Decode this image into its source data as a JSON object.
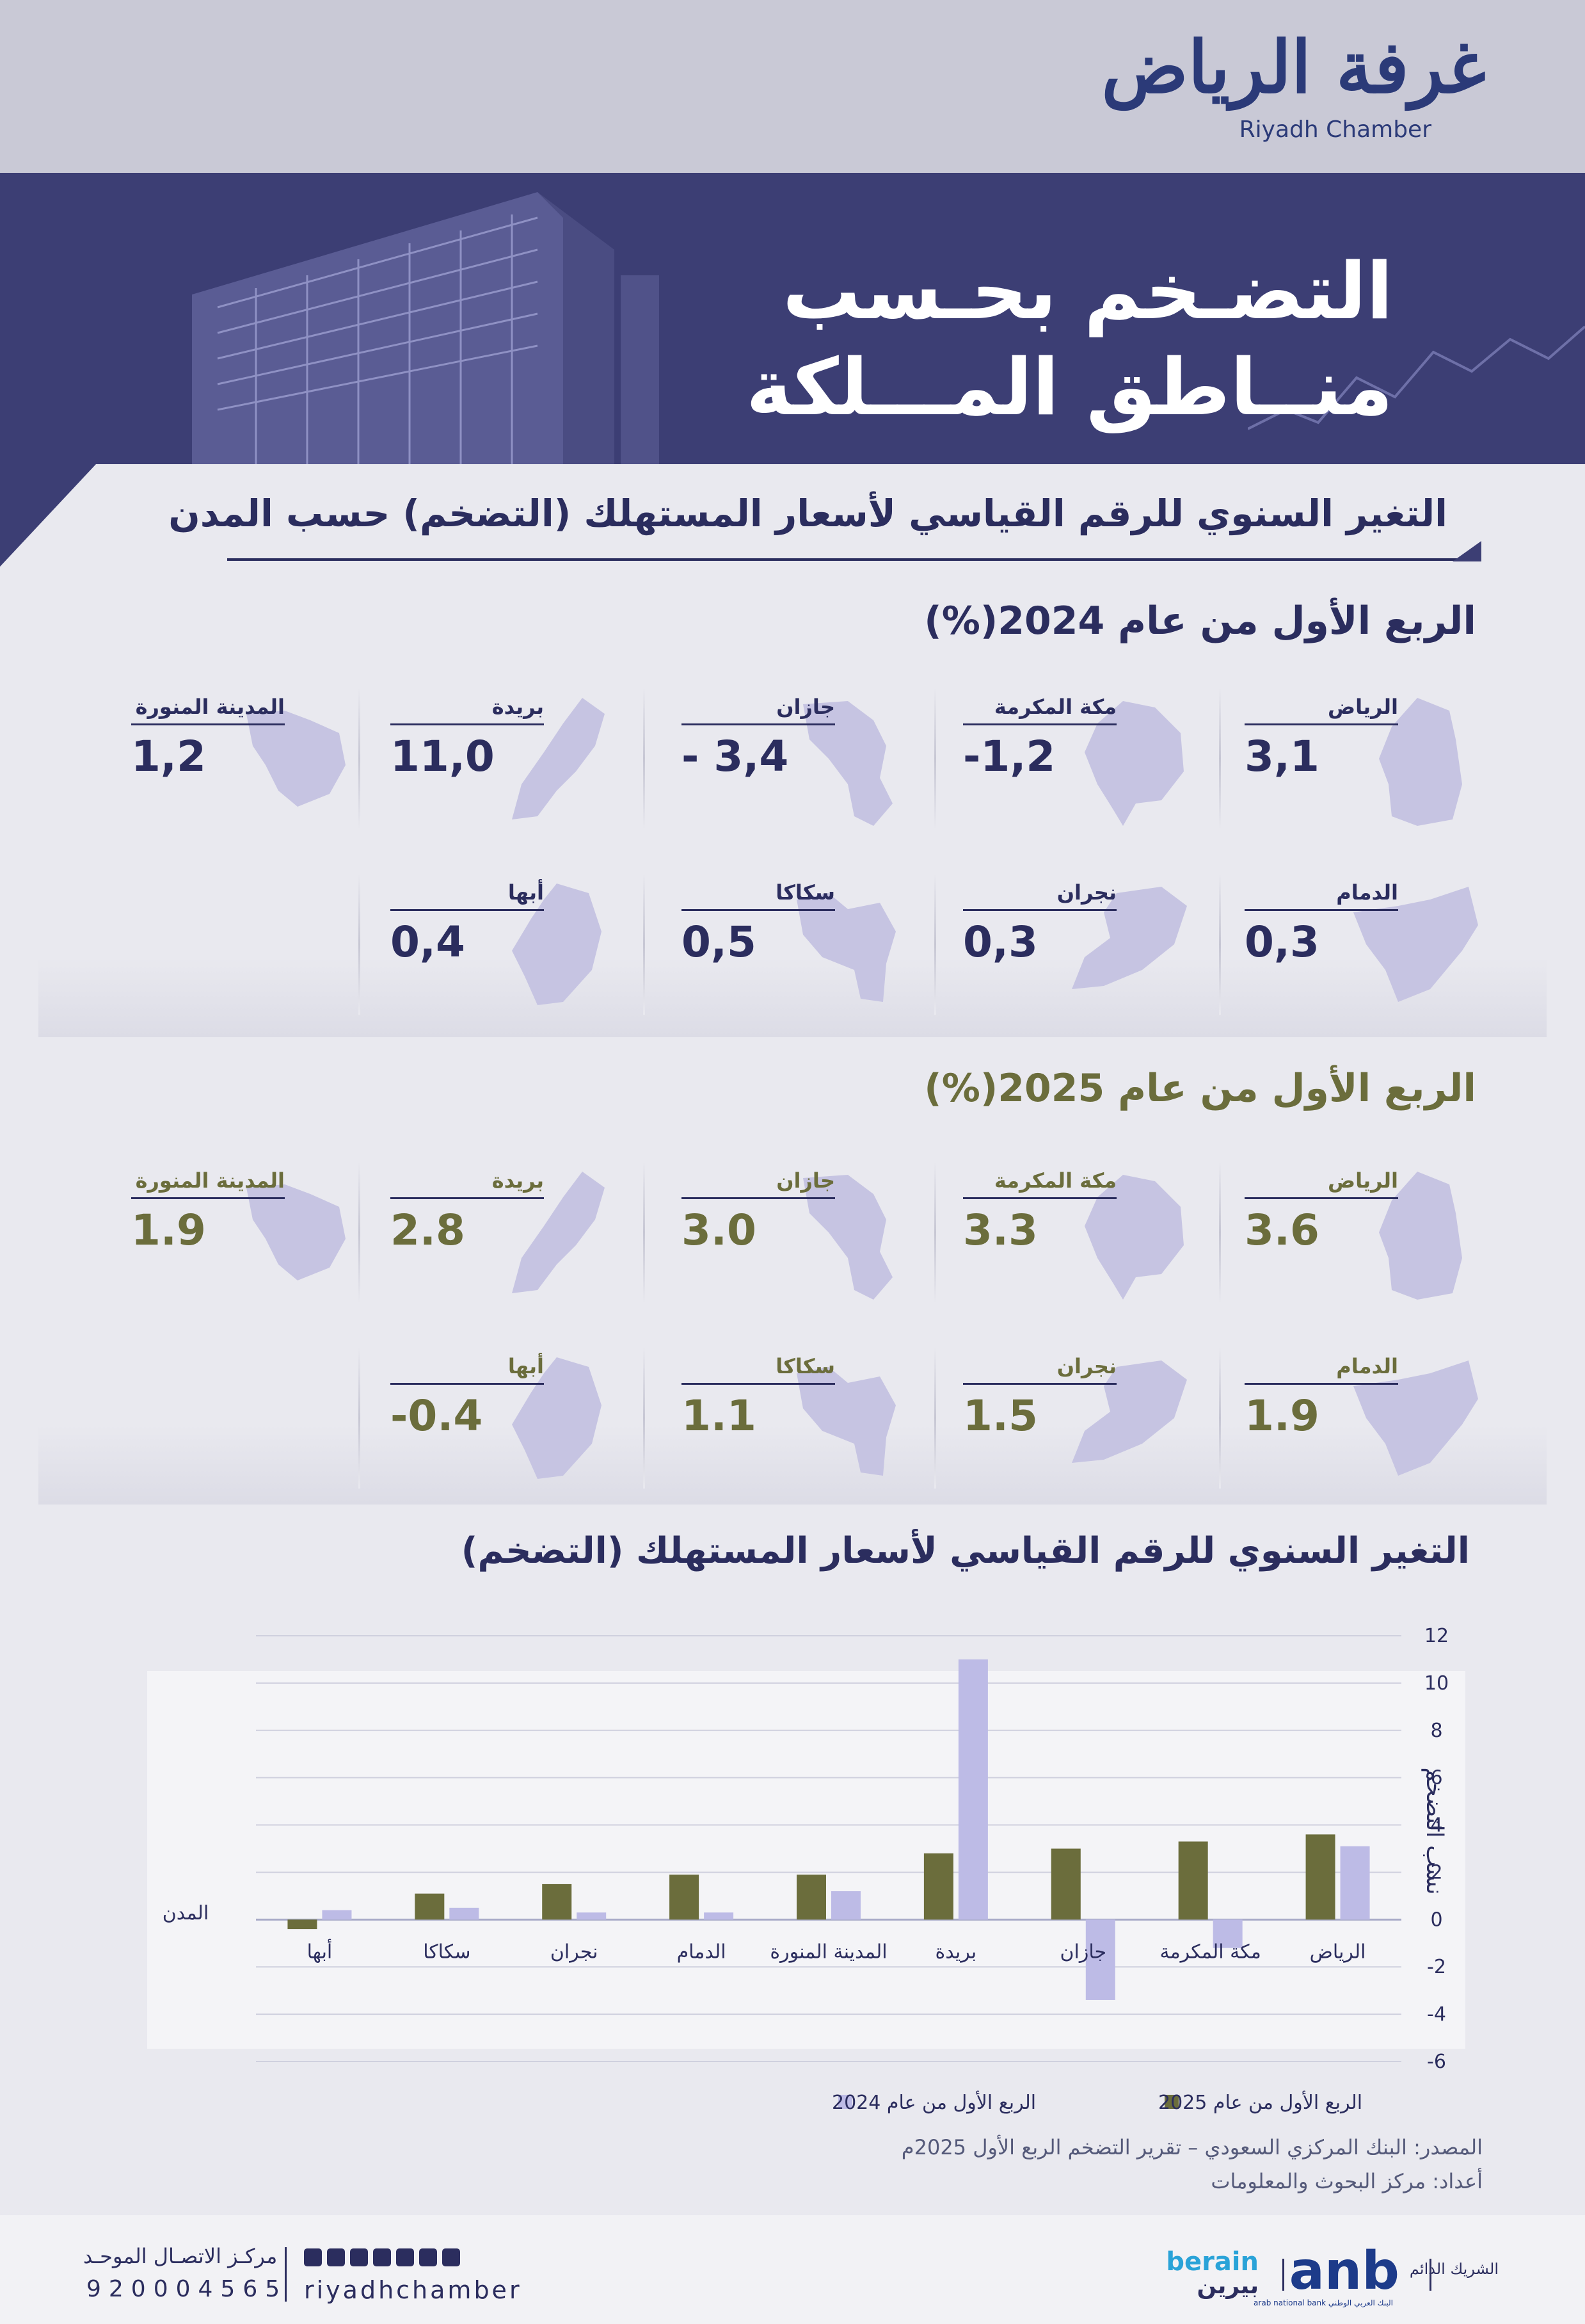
{
  "header": {
    "logo_ar": "غرفة الرياض",
    "logo_en": "Riyadh Chamber",
    "hero_title_line1": "التضـخم بحـسب",
    "hero_title_line2": "منــاطق المـــلكة"
  },
  "section": {
    "title": "التغير السنوي للرقم القياسي لأسعار المستهلك (التضخم) حسب المدن"
  },
  "q1_2024": {
    "heading": "الربع الأول من عام 2024(%)",
    "cities": [
      {
        "name": "الرياض",
        "value": "3,1",
        "map": "riyadh-map-icon"
      },
      {
        "name": "مكة المكرمة",
        "value": "-1,2",
        "map": "makkah-map-icon"
      },
      {
        "name": "جازان",
        "value": "- 3,4",
        "map": "jazan-map-icon"
      },
      {
        "name": "بريدة",
        "value": "11,0",
        "map": "buraidah-map-icon"
      },
      {
        "name": "المدينة المنورة",
        "value": "1,2",
        "map": "madinah-map-icon"
      },
      {
        "name": "الدمام",
        "value": "0,3",
        "map": "dammam-map-icon"
      },
      {
        "name": "نجران",
        "value": "0,3",
        "map": "najran-map-icon"
      },
      {
        "name": "سكاكا",
        "value": "0,5",
        "map": "sakaka-map-icon"
      },
      {
        "name": "أبها",
        "value": "0,4",
        "map": "abha-map-icon"
      }
    ]
  },
  "q1_2025": {
    "heading": "الربع الأول من عام 2025(%)",
    "cities": [
      {
        "name": "الرياض",
        "value": "3.6",
        "map": "riyadh-map-icon"
      },
      {
        "name": "مكة المكرمة",
        "value": "3.3",
        "map": "makkah-map-icon"
      },
      {
        "name": "جازان",
        "value": "3.0",
        "map": "jazan-map-icon"
      },
      {
        "name": "بريدة",
        "value": "2.8",
        "map": "buraidah-map-icon"
      },
      {
        "name": "المدينة المنورة",
        "value": "1.9",
        "map": "madinah-map-icon"
      },
      {
        "name": "الدمام",
        "value": "1.9",
        "map": "dammam-map-icon"
      },
      {
        "name": "نجران",
        "value": "1.5",
        "map": "najran-map-icon"
      },
      {
        "name": "سكاكا",
        "value": "1.1",
        "map": "sakaka-map-icon"
      },
      {
        "name": "أبها",
        "value": "-0.4",
        "map": "abha-map-icon"
      }
    ]
  },
  "chart_data": {
    "type": "bar",
    "title": "التغير السنوي للرقم القياسي لأسعار المستهلك (التضخم)",
    "xlabel": "المدن",
    "ylabel": "نسب التضخم",
    "categories": [
      "أبها",
      "سكاكا",
      "نجران",
      "الدمام",
      "المدينة المنورة",
      "بريدة",
      "جازان",
      "مكة المكرمة",
      "الرياض"
    ],
    "series": [
      {
        "name": "الربع الأول من عام 2025",
        "color": "#6b6d3c",
        "values": [
          -0.4,
          1.1,
          1.5,
          1.9,
          1.9,
          2.8,
          3.0,
          3.3,
          3.6
        ]
      },
      {
        "name": "الربع الأول من عام 2024",
        "color": "#bdbbe6",
        "values": [
          0.4,
          0.5,
          0.3,
          0.3,
          1.2,
          11.0,
          -3.4,
          -1.2,
          3.1
        ]
      }
    ],
    "ylim": [
      -6,
      12
    ],
    "yticks": [
      "12",
      "10",
      "8",
      "6",
      "4",
      "2",
      "0",
      "-2",
      "-4",
      "-6"
    ],
    "grid": true,
    "legend_position": "bottom-center"
  },
  "source": {
    "line1": "المصدر: البنك المركزي السعودي – تقرير التضخم الربع الأول 2025م",
    "line2": "أعداد: مركز البحوث والمعلومات"
  },
  "footer": {
    "center_label": "مركـز الاتصـال الموحـد",
    "phone": "920004565",
    "handle": "riyadhchamber",
    "social_icons": [
      "linkedin-icon",
      "x-icon",
      "facebook-icon",
      "snapchat-icon",
      "youtube-icon",
      "instagram-icon",
      "whatsapp-icon"
    ],
    "partner_label": "الشريك الدائم",
    "anb": "anb",
    "anb_sub": "arab national bank البنك العربي الوطني",
    "berain_en": "berain",
    "berain_ar": "بيرين"
  }
}
